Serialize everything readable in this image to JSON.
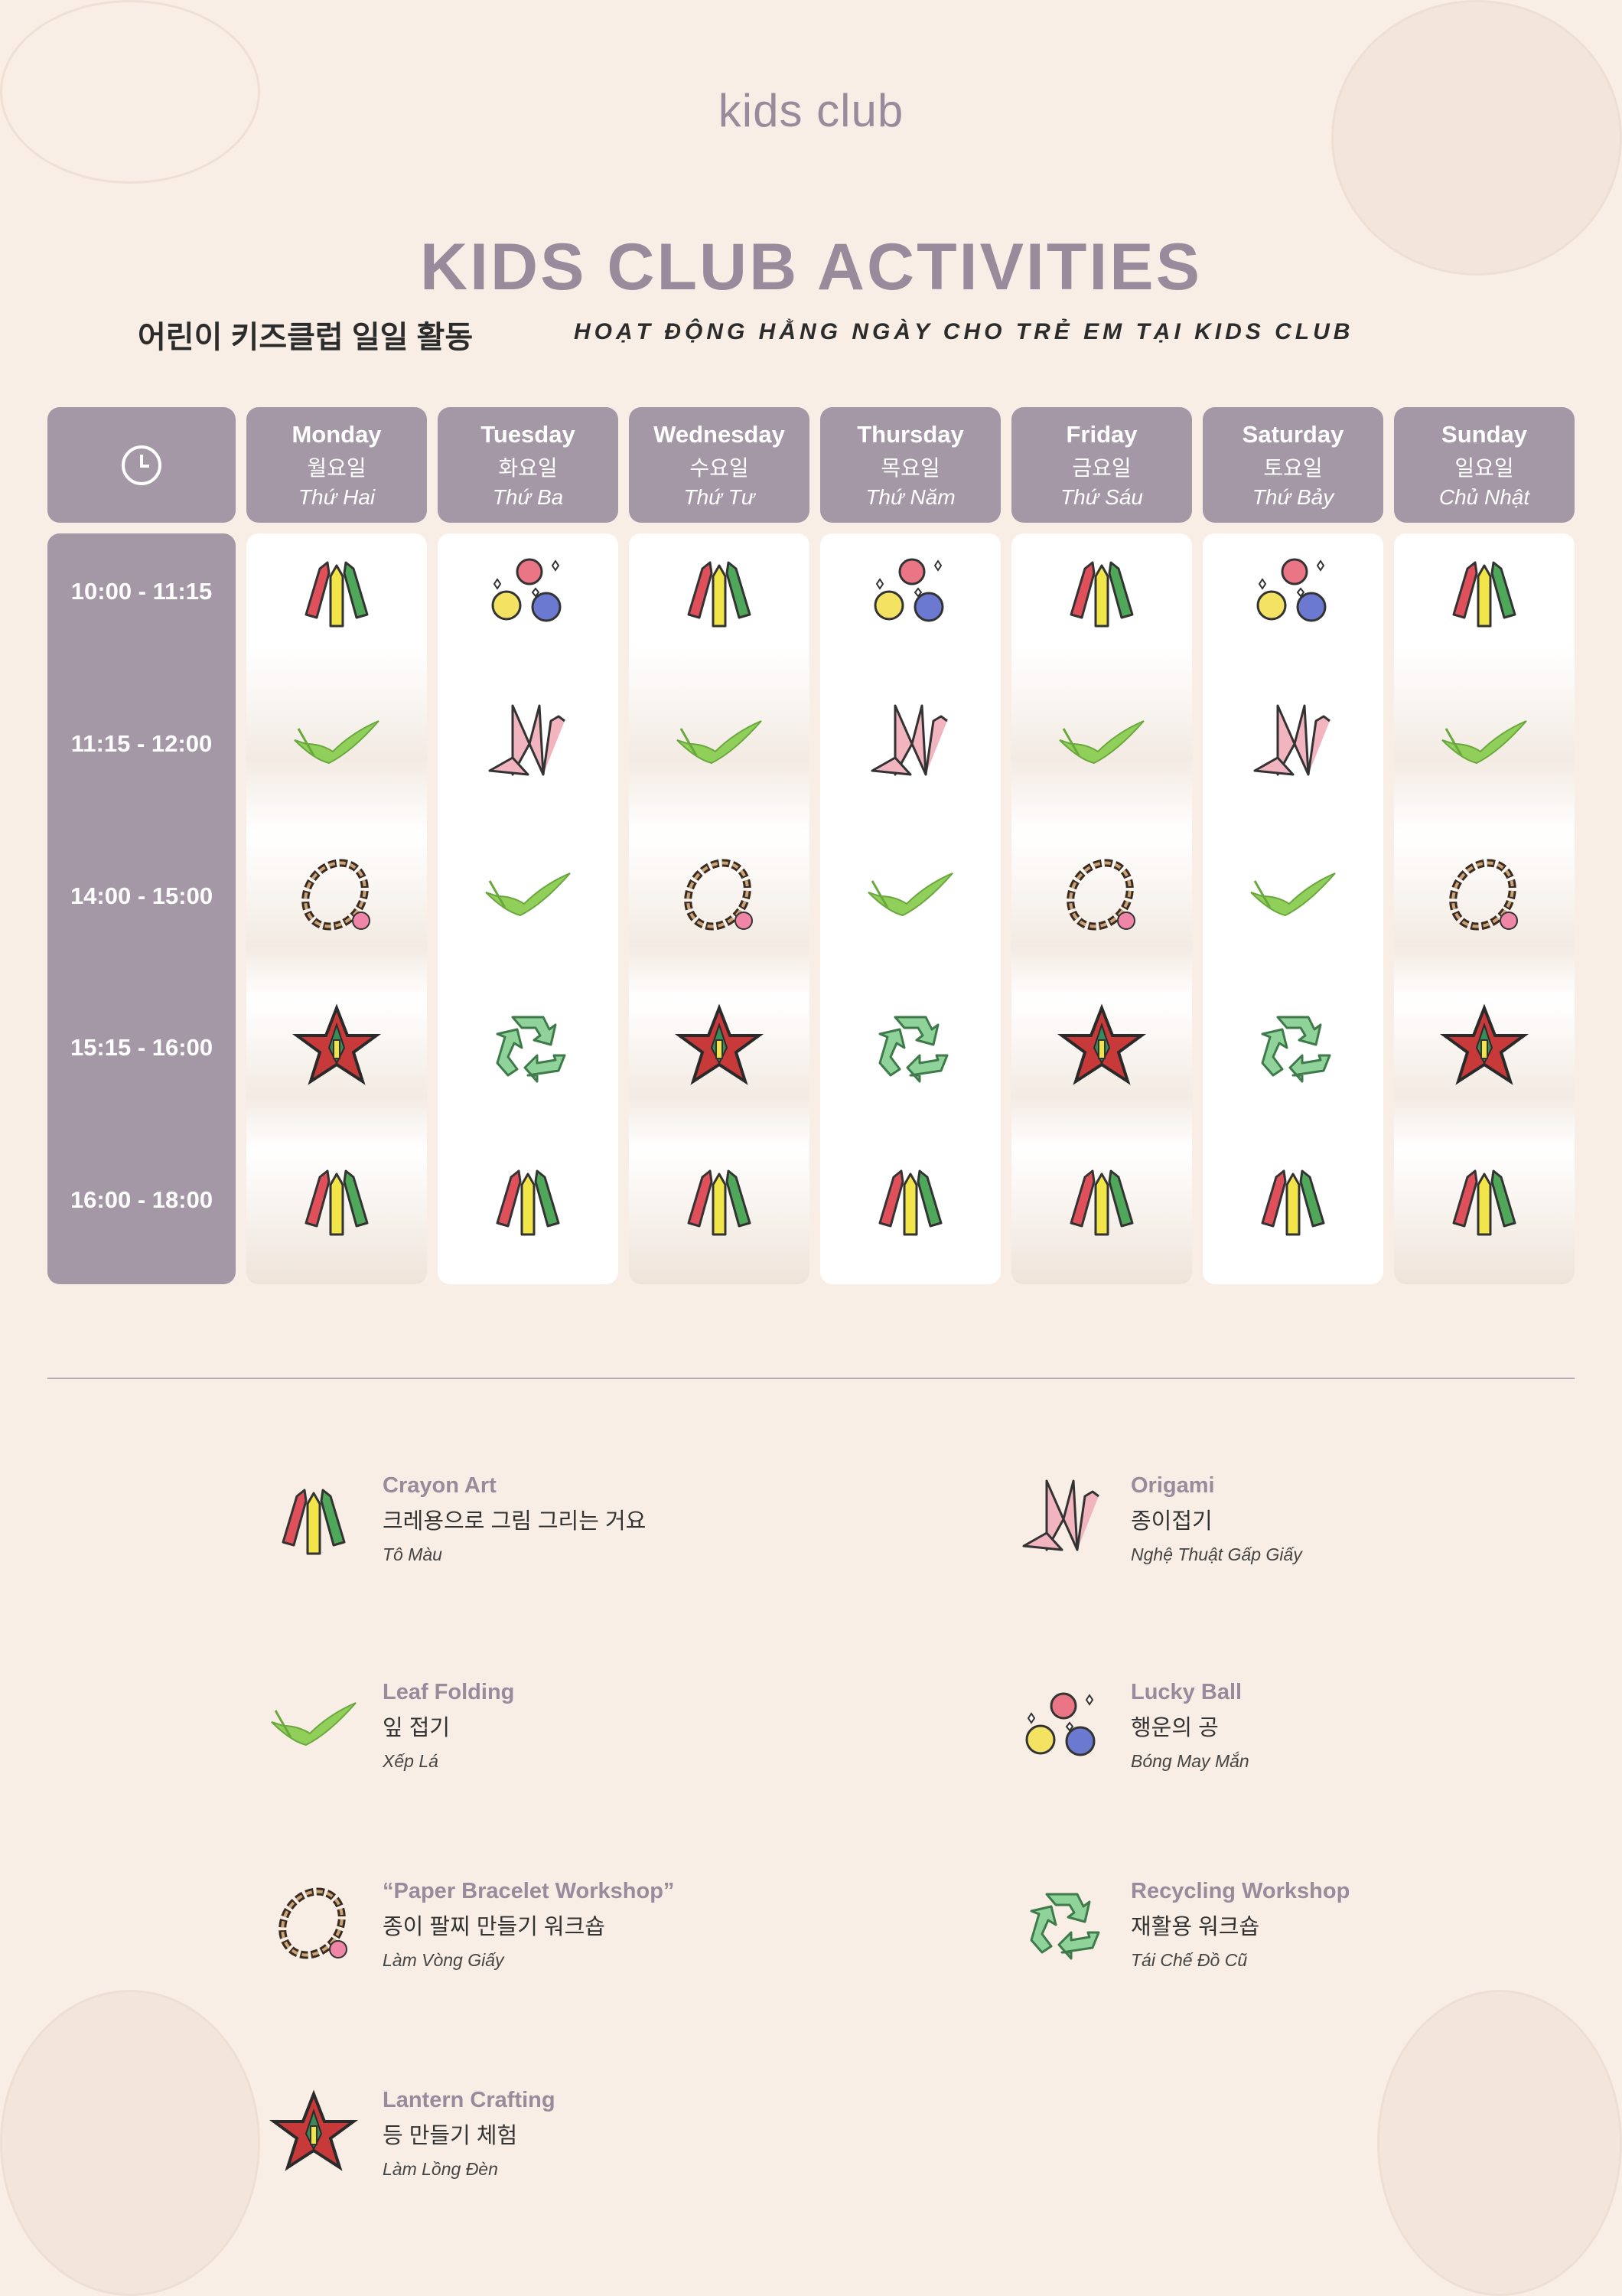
{
  "logo": "kids club",
  "title": "KIDS CLUB ACTIVITIES",
  "subtitle_ko": "어린이 키즈클럽 일일 활동",
  "subtitle_vi": "HOẠT ĐỘNG HẰNG NGÀY CHO TRẺ EM TẠI KIDS CLUB",
  "colors": {
    "background": "#f8eee5",
    "accent": "#a598a6",
    "title": "#9a8b9c"
  },
  "time_icon": "clock-icon",
  "days": [
    {
      "en": "Monday",
      "ko": "월요일",
      "vi": "Thứ Hai"
    },
    {
      "en": "Tuesday",
      "ko": "화요일",
      "vi": "Thứ Ba"
    },
    {
      "en": "Wednesday",
      "ko": "수요일",
      "vi": "Thứ Tư"
    },
    {
      "en": "Thursday",
      "ko": "목요일",
      "vi": "Thứ Năm"
    },
    {
      "en": "Friday",
      "ko": "금요일",
      "vi": "Thứ Sáu"
    },
    {
      "en": "Saturday",
      "ko": "토요일",
      "vi": "Thứ Bảy"
    },
    {
      "en": "Sunday",
      "ko": "일요일",
      "vi": "Chủ Nhật"
    }
  ],
  "times": [
    "10:00 - 11:15",
    "11:15 - 12:00",
    "14:00 - 15:00",
    "15:15 - 16:00",
    "16:00 - 18:00"
  ],
  "schedule": [
    [
      "crayon",
      "leaf",
      "bracelet",
      "lantern",
      "crayon"
    ],
    [
      "ball",
      "origami",
      "leaf",
      "recycle",
      "crayon"
    ],
    [
      "crayon",
      "leaf",
      "bracelet",
      "lantern",
      "crayon"
    ],
    [
      "ball",
      "origami",
      "leaf",
      "recycle",
      "crayon"
    ],
    [
      "crayon",
      "leaf",
      "bracelet",
      "lantern",
      "crayon"
    ],
    [
      "ball",
      "origami",
      "leaf",
      "recycle",
      "crayon"
    ],
    [
      "crayon",
      "leaf",
      "bracelet",
      "lantern",
      "crayon"
    ]
  ],
  "legend": [
    {
      "icon": "crayon",
      "en": "Crayon Art",
      "ko": "크레용으로 그림 그리는 거요",
      "vi": "Tô Màu"
    },
    {
      "icon": "origami",
      "en": "Origami",
      "ko": "종이접기",
      "vi": "Nghệ Thuật Gấp Giấy"
    },
    {
      "icon": "leaf",
      "en": "Leaf Folding",
      "ko": "잎 접기",
      "vi": "Xếp Lá"
    },
    {
      "icon": "ball",
      "en": "Lucky Ball",
      "ko": "행운의 공",
      "vi": "Bóng May Mắn"
    },
    {
      "icon": "bracelet",
      "en": "“Paper Bracelet Workshop”",
      "ko": "종이 팔찌 만들기 워크숍",
      "vi": "Làm Vòng Giấy"
    },
    {
      "icon": "recycle",
      "en": "Recycling Workshop",
      "ko": "재활용 워크숍",
      "vi": "Tái Chế Đồ Cũ"
    },
    {
      "icon": "lantern",
      "en": "Lantern Crafting",
      "ko": "등 만들기 체험",
      "vi": "Làm Lồng Đèn"
    }
  ]
}
